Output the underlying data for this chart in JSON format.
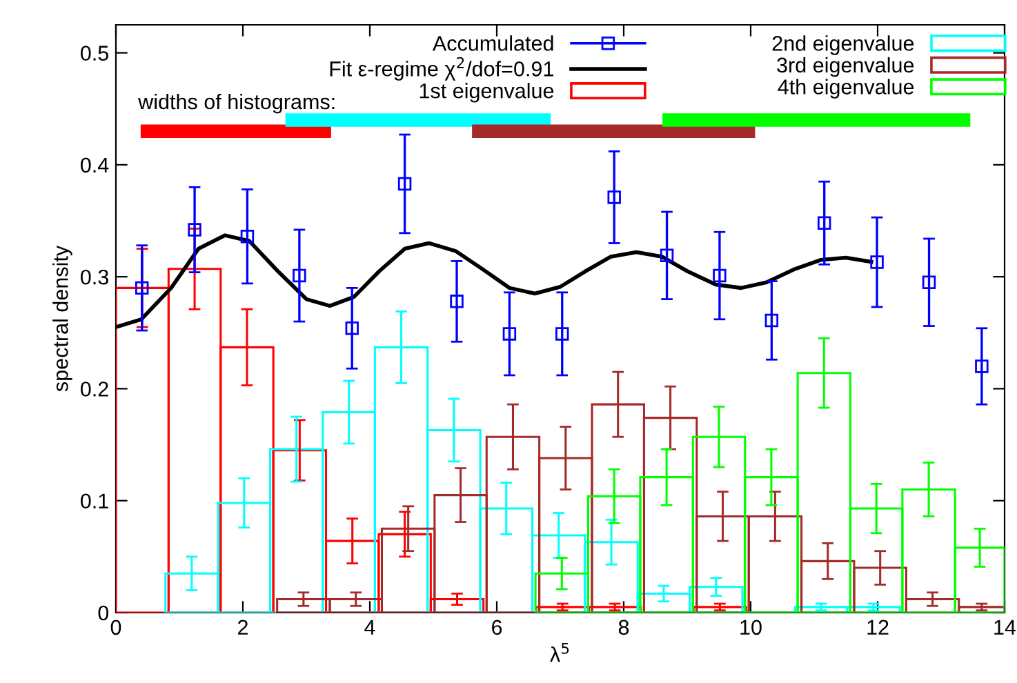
{
  "chart_data": {
    "type": "histogram",
    "xlabel": "λ$^{5}$",
    "ylabel": "spectral density",
    "xlim": [
      0,
      14
    ],
    "xticks": [
      0,
      2,
      4,
      6,
      8,
      10,
      12,
      14
    ],
    "ylim": [
      0,
      0.525
    ],
    "yticks": [
      0,
      0.1,
      0.2,
      0.3,
      0.4,
      0.5
    ],
    "legend": "top",
    "annotations": [
      "widths of histograms:"
    ],
    "series": [
      {
        "name": "Accumulated",
        "type": "scatter",
        "marker": "square",
        "color": "#0000ff",
        "x": [
          0.41,
          1.24,
          2.07,
          2.89,
          3.72,
          4.55,
          5.37,
          6.2,
          7.03,
          7.85,
          8.68,
          9.51,
          10.33,
          11.16,
          11.99,
          12.81,
          13.64
        ],
        "values": [
          0.29,
          0.342,
          0.336,
          0.301,
          0.254,
          0.383,
          0.278,
          0.249,
          0.249,
          0.371,
          0.319,
          0.301,
          0.261,
          0.348,
          0.313,
          0.295,
          0.22
        ],
        "errors": [
          0.038,
          0.038,
          0.042,
          0.041,
          0.036,
          0.044,
          0.036,
          0.037,
          0.037,
          0.041,
          0.039,
          0.039,
          0.035,
          0.037,
          0.04,
          0.039,
          0.034
        ]
      },
      {
        "name": "Fit ε-regime χ$^{2}$/dof=0.91",
        "type": "line",
        "color": "#000000",
        "x": [
          0,
          0.4,
          0.87,
          1.3,
          1.72,
          2.1,
          2.55,
          3.0,
          3.37,
          3.75,
          4.15,
          4.55,
          4.93,
          5.35,
          5.77,
          6.2,
          6.6,
          7.0,
          7.4,
          7.8,
          8.2,
          8.6,
          9.0,
          9.45,
          9.85,
          10.25,
          10.7,
          11.1,
          11.5,
          11.93
        ],
        "values": [
          0.255,
          0.262,
          0.29,
          0.325,
          0.337,
          0.332,
          0.305,
          0.28,
          0.274,
          0.282,
          0.305,
          0.325,
          0.33,
          0.323,
          0.307,
          0.29,
          0.285,
          0.291,
          0.305,
          0.318,
          0.322,
          0.318,
          0.305,
          0.293,
          0.29,
          0.295,
          0.307,
          0.315,
          0.317,
          0.313
        ]
      },
      {
        "name": "1st eigenvalue",
        "color": "#ff0000",
        "bins": [
          0,
          0.83,
          1.65,
          2.48,
          3.31,
          4.14,
          4.96,
          5.79,
          6.62,
          7.45,
          8.27,
          9.1,
          9.93
        ],
        "values": [
          0.29,
          0.307,
          0.237,
          0.145,
          0.064,
          0.07,
          0.012,
          0,
          0.005,
          0.005,
          0,
          0.005
        ],
        "errors": [
          0.035,
          0.036,
          0.034,
          0.027,
          0.02,
          0.02,
          0.005,
          null,
          0.003,
          0.003,
          null,
          0.003
        ]
      },
      {
        "name": "2nd eigenvalue",
        "color": "#00ffff",
        "bins": [
          0.78,
          1.61,
          2.43,
          3.26,
          4.08,
          4.91,
          5.74,
          6.56,
          7.39,
          8.22,
          9.04,
          9.87,
          10.7,
          11.52,
          12.35
        ],
        "values": [
          0.035,
          0.098,
          0.146,
          0.179,
          0.237,
          0.163,
          0.093,
          0.069,
          0.063,
          0.017,
          0.023,
          0,
          0.005,
          0.005
        ],
        "errors": [
          0.015,
          0.022,
          0.029,
          0.028,
          0.032,
          0.028,
          0.023,
          0.02,
          0.02,
          0.007,
          0.008,
          null,
          0.003,
          0.003
        ]
      },
      {
        "name": "3rd eigenvalue",
        "color": "#a52a2a",
        "bins": [
          2.54,
          3.37,
          4.19,
          5.02,
          5.84,
          6.67,
          7.5,
          8.32,
          9.15,
          9.97,
          10.8,
          11.63,
          12.45,
          13.28,
          14
        ],
        "values": [
          0.012,
          0.012,
          0.075,
          0.105,
          0.157,
          0.138,
          0.186,
          0.174,
          0.086,
          0.086,
          0.046,
          0.04,
          0.012,
          0.005
        ],
        "errors": [
          0.006,
          0.006,
          0.02,
          0.024,
          0.029,
          0.028,
          0.029,
          0.028,
          0.022,
          0.022,
          0.016,
          0.015,
          0.006,
          0.003
        ]
      },
      {
        "name": "4th eigenvalue",
        "color": "#00ff00",
        "bins": [
          6.61,
          7.44,
          8.26,
          9.09,
          9.91,
          10.74,
          11.57,
          12.39,
          13.22,
          14
        ],
        "values": [
          0.035,
          0.104,
          0.121,
          0.157,
          0.121,
          0.214,
          0.093,
          0.11,
          0.058
        ],
        "errors": [
          0.014,
          0.024,
          0.025,
          0.027,
          0.025,
          0.031,
          0.022,
          0.024,
          0.017
        ]
      },
      {
        "type": "line",
        "color": "#ff0000",
        "x": [
          0.39,
          3.39
        ],
        "values": [
          0.43,
          0.43
        ]
      },
      {
        "type": "line",
        "color": "#00ffff",
        "x": [
          2.67,
          6.85
        ],
        "values": [
          0.44,
          0.44
        ]
      },
      {
        "type": "line",
        "color": "#a52a2a",
        "x": [
          5.61,
          10.07
        ],
        "values": [
          0.43,
          0.43
        ]
      },
      {
        "type": "line",
        "color": "#00ff00",
        "x": [
          8.61,
          13.46
        ],
        "values": [
          0.44,
          0.44
        ]
      }
    ]
  }
}
